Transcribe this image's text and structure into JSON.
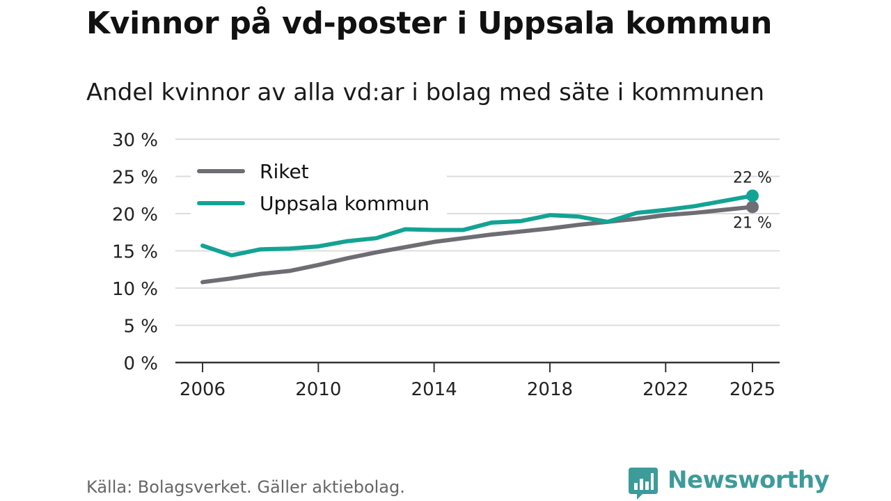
{
  "title": "Kvinnor på vd-poster i Uppsala kommun",
  "subtitle": "Andel kvinnor av alla vd:ar i bolag med säte i kommunen",
  "source": "Källa: Bolagsverket. Gäller aktiebolag.",
  "brand": {
    "name": "Newsworthy",
    "color": "#3d9b9a"
  },
  "chart_data": {
    "type": "line",
    "x": [
      2006,
      2007,
      2008,
      2009,
      2010,
      2011,
      2012,
      2013,
      2014,
      2015,
      2016,
      2017,
      2018,
      2019,
      2020,
      2021,
      2022,
      2023,
      2024,
      2025
    ],
    "x_ticks": [
      2006,
      2010,
      2014,
      2018,
      2022,
      2025
    ],
    "ylim": [
      0,
      30
    ],
    "y_ticks": [
      0,
      5,
      10,
      15,
      20,
      25,
      30
    ],
    "y_tick_labels": [
      "0 %",
      "5 %",
      "10 %",
      "15 %",
      "20 %",
      "25 %",
      "30 %"
    ],
    "grid": true,
    "legend_position": "top-left",
    "series": [
      {
        "name": "Riket",
        "color": "#6e6d74",
        "values": [
          10.8,
          11.3,
          11.9,
          12.3,
          13.1,
          14.0,
          14.8,
          15.5,
          16.2,
          16.7,
          17.2,
          17.6,
          18.0,
          18.5,
          18.9,
          19.3,
          19.8,
          20.1,
          20.5,
          20.9
        ],
        "end_label": "21 %"
      },
      {
        "name": "Uppsala kommun",
        "color": "#13a394",
        "values": [
          15.7,
          14.4,
          15.2,
          15.3,
          15.6,
          16.3,
          16.7,
          17.9,
          17.8,
          17.8,
          18.8,
          19.0,
          19.8,
          19.6,
          18.9,
          20.1,
          20.5,
          21.0,
          21.7,
          22.4
        ],
        "end_label": "22 %"
      }
    ]
  }
}
